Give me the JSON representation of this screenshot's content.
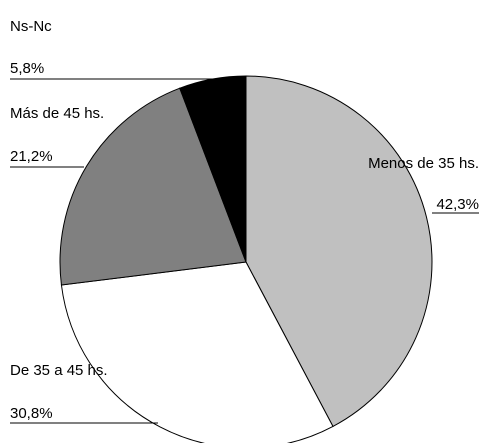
{
  "chart_data": {
    "type": "pie",
    "title": "",
    "legend": "none",
    "slices": [
      {
        "label": "Menos de 35 hs.",
        "value": 42.3,
        "value_label": "42,3%",
        "color": "#c0c0c0"
      },
      {
        "label": "De 35 a 45 hs.",
        "value": 30.8,
        "value_label": "30,8%",
        "color": "#ffffff"
      },
      {
        "label": "Más de 45 hs.",
        "value": 21.2,
        "value_label": "21,2%",
        "color": "#808080"
      },
      {
        "label": "Ns-Nc",
        "value": 5.8,
        "value_label": "5,8%",
        "color": "#000000"
      }
    ]
  }
}
